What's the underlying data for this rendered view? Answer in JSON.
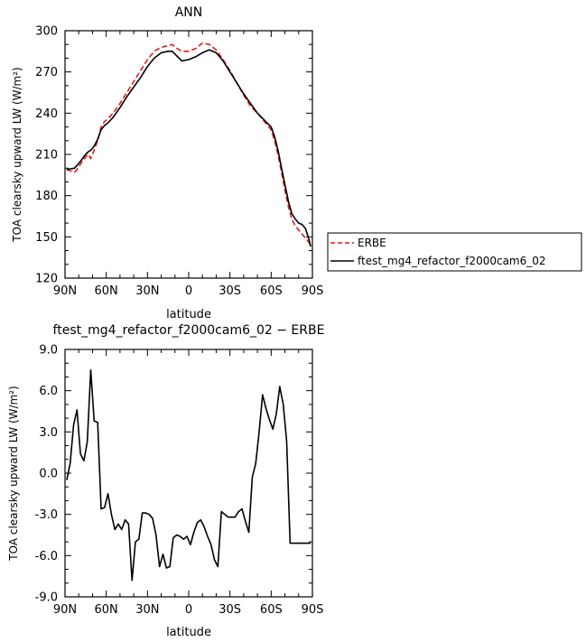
{
  "chart_data": [
    {
      "type": "line",
      "title": "ANN",
      "xlabel": "latitude",
      "ylabel": "TOA clearsky upward LW (W/m²)",
      "xlim": [
        90,
        -90
      ],
      "ylim": [
        120,
        300
      ],
      "xticks": [
        {
          "value": 90,
          "label": "90N"
        },
        {
          "value": 60,
          "label": "60N"
        },
        {
          "value": 30,
          "label": "30N"
        },
        {
          "value": 0,
          "label": "0"
        },
        {
          "value": -30,
          "label": "30S"
        },
        {
          "value": -60,
          "label": "60S"
        },
        {
          "value": -90,
          "label": "90S"
        }
      ],
      "yticks": [
        {
          "value": 120,
          "label": "120"
        },
        {
          "value": 150,
          "label": "150"
        },
        {
          "value": 180,
          "label": "180"
        },
        {
          "value": 210,
          "label": "210"
        },
        {
          "value": 240,
          "label": "240"
        },
        {
          "value": 270,
          "label": "270"
        },
        {
          "value": 300,
          "label": "300"
        }
      ],
      "legend": {
        "placement": "right"
      },
      "series": [
        {
          "name": "ERBE",
          "color": "#e41a1c",
          "dash": "dashed",
          "x": [
            88.75,
            86,
            83,
            81.25,
            78,
            75,
            73,
            71.25,
            68.75,
            66.25,
            63.75,
            61.25,
            58.75,
            55,
            50,
            45,
            40,
            35,
            30,
            25,
            20,
            15,
            12,
            10,
            5,
            0,
            -5,
            -10,
            -15,
            -20,
            -25,
            -30,
            -35,
            -40,
            -45,
            -50,
            -55,
            -60,
            -62.5,
            -65,
            -67.5,
            -70,
            -72.5,
            -75,
            -77.5,
            -80,
            -82.5,
            -85,
            -87.5,
            -88.75
          ],
          "y": [
            199,
            198,
            197,
            199,
            204,
            208,
            210,
            207,
            213,
            220,
            230,
            234,
            236,
            240,
            247,
            255,
            263,
            271,
            279,
            285,
            288,
            289,
            290,
            288,
            285,
            285,
            287,
            291,
            290,
            286,
            279,
            271,
            262,
            253,
            245,
            240,
            234,
            228,
            220,
            210,
            197,
            184,
            172,
            163,
            158,
            155,
            152,
            149,
            146,
            144
          ]
        },
        {
          "name": "ftest_mg4_refactor_f2000cam6_02",
          "color": "#000000",
          "dash": "solid",
          "x": [
            88.75,
            86,
            83,
            81.25,
            78,
            75,
            73,
            71.25,
            68.75,
            66.25,
            63.75,
            61.25,
            58.75,
            55,
            50,
            45,
            40,
            35,
            30,
            25,
            20,
            15,
            12,
            10,
            5,
            0,
            -5,
            -10,
            -15,
            -20,
            -25,
            -30,
            -35,
            -40,
            -45,
            -50,
            -55,
            -60,
            -62.5,
            -65,
            -67.5,
            -70,
            -72.5,
            -75,
            -77.5,
            -80,
            -82.5,
            -85,
            -87.5,
            -88.75
          ],
          "y": [
            199,
            199.5,
            200,
            202,
            206,
            210,
            212,
            213,
            216,
            221,
            228,
            231,
            233,
            237,
            244,
            252,
            259,
            266,
            274,
            280,
            284,
            285,
            285,
            283,
            278,
            279,
            281,
            284,
            286,
            284,
            278,
            270,
            262,
            254,
            247,
            240,
            235,
            230,
            223,
            213,
            200,
            188,
            176,
            167,
            163,
            160,
            159,
            156,
            148,
            143
          ]
        }
      ]
    },
    {
      "type": "line",
      "title": "ftest_mg4_refactor_f2000cam6_02 − ERBE",
      "xlabel": "latitude",
      "ylabel": "TOA clearsky upward LW (W/m²)",
      "xlim": [
        90,
        -90
      ],
      "ylim": [
        -9,
        9
      ],
      "xticks": [
        {
          "value": 90,
          "label": "90N"
        },
        {
          "value": 60,
          "label": "60N"
        },
        {
          "value": 30,
          "label": "30N"
        },
        {
          "value": 0,
          "label": "0"
        },
        {
          "value": -30,
          "label": "30S"
        },
        {
          "value": -60,
          "label": "60S"
        },
        {
          "value": -90,
          "label": "90S"
        }
      ],
      "yticks": [
        {
          "value": -9,
          "label": "-9.0"
        },
        {
          "value": -6,
          "label": "-6.0"
        },
        {
          "value": -3,
          "label": "-3.0"
        },
        {
          "value": 0,
          "label": "0.0"
        },
        {
          "value": 3,
          "label": "3.0"
        },
        {
          "value": 6,
          "label": "6.0"
        },
        {
          "value": 9,
          "label": "9.0"
        }
      ],
      "series": [
        {
          "color": "#000000",
          "dash": "solid",
          "x": [
            88.75,
            86.25,
            83.75,
            81.25,
            78.75,
            76.25,
            73.75,
            71.25,
            68.75,
            66.25,
            63.75,
            61.25,
            58.75,
            56.25,
            53.75,
            51.25,
            48.75,
            46.25,
            43.75,
            41.25,
            38.75,
            36.25,
            33.75,
            31.25,
            28.75,
            26.25,
            23.75,
            21.25,
            18.75,
            16.25,
            13.75,
            11.25,
            8.75,
            6.25,
            3.75,
            1.25,
            -1.25,
            -3.75,
            -6.25,
            -8.75,
            -11.25,
            -13.75,
            -16.25,
            -18.75,
            -21.25,
            -23.75,
            -26.25,
            -28.75,
            -31.25,
            -33.75,
            -36.25,
            -38.75,
            -41.25,
            -43.75,
            -46.25,
            -48.75,
            -51.25,
            -53.75,
            -56.25,
            -58.75,
            -61.25,
            -63.75,
            -66.25,
            -68.75,
            -71.25,
            -73.75,
            -76.25,
            -78.75,
            -81.25,
            -83.75,
            -86.25,
            -88.75
          ],
          "y": [
            -0.5,
            0.7,
            3.5,
            4.6,
            1.4,
            0.9,
            2.3,
            7.5,
            3.8,
            3.7,
            -2.6,
            -2.5,
            -1.5,
            -3.0,
            -4.1,
            -3.7,
            -4.1,
            -3.4,
            -3.7,
            -7.8,
            -5.0,
            -4.8,
            -2.9,
            -2.9,
            -3.0,
            -3.3,
            -4.5,
            -6.8,
            -5.9,
            -6.9,
            -6.8,
            -4.7,
            -4.5,
            -4.6,
            -4.8,
            -4.6,
            -5.2,
            -4.3,
            -3.6,
            -3.4,
            -3.9,
            -4.6,
            -5.2,
            -6.3,
            -6.8,
            -2.8,
            -3.0,
            -3.2,
            -3.2,
            -3.2,
            -2.8,
            -2.6,
            -3.5,
            -4.3,
            -0.3,
            0.7,
            3.0,
            5.7,
            4.7,
            3.9,
            3.2,
            4.3,
            6.3,
            5.0,
            2.3,
            -5.1,
            -5.1,
            -5.1,
            -5.1,
            -5.1,
            -5.1,
            -5.1
          ]
        }
      ]
    }
  ]
}
